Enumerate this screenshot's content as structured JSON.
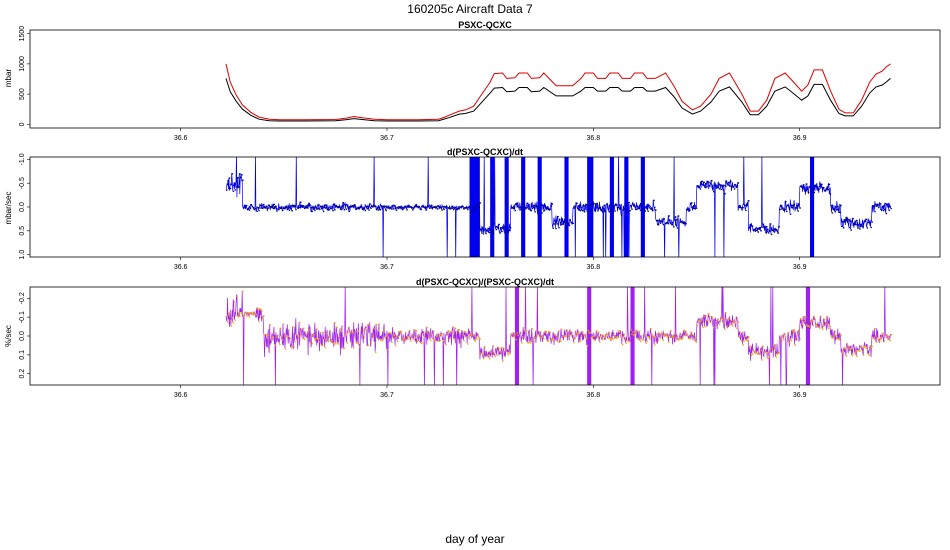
{
  "figure": {
    "title": "160205c   Aircraft Data 7",
    "xlabel": "day of year",
    "colors": {
      "panel1_upper": "#dd0000",
      "panel1_lower": "#000000",
      "panel2_line": "#0000ee",
      "panel2_points": "#00008b",
      "panel3_line": "#a020f0",
      "panel3_points": "#ffa500"
    }
  },
  "chart_data": [
    {
      "type": "line",
      "title": "PSXC-QCXC",
      "ylabel": "mbar",
      "xlim": [
        36.527,
        36.968
      ],
      "ylim": [
        -60,
        1560
      ],
      "x_ticks": [
        36.6,
        36.7,
        36.8,
        36.9
      ],
      "x_tick_labels": [
        "36.6",
        "36.7",
        "36.8",
        "36.9"
      ],
      "y_ticks": [
        0,
        500,
        1000,
        1500
      ],
      "y_tick_labels": [
        "0",
        "500",
        "1000",
        "1500"
      ],
      "series": [
        {
          "name": "upper (red)",
          "color": "#dd0000",
          "x": [
            36.622,
            36.624,
            36.627,
            36.63,
            36.634,
            36.638,
            36.643,
            36.648,
            36.66,
            36.675,
            36.68,
            36.684,
            36.688,
            36.694,
            36.7,
            36.715,
            36.725,
            36.728,
            36.73,
            36.735,
            36.738,
            36.742,
            36.745,
            36.75,
            36.752,
            36.756,
            36.758,
            36.762,
            36.764,
            36.768,
            36.77,
            36.774,
            36.776,
            36.782,
            36.79,
            36.794,
            36.796,
            36.8,
            36.802,
            36.806,
            36.808,
            36.812,
            36.814,
            36.818,
            36.82,
            36.824,
            36.826,
            36.83,
            36.835,
            36.839,
            36.843,
            36.848,
            36.852,
            36.857,
            36.861,
            36.866,
            36.872,
            36.876,
            36.88,
            36.884,
            36.888,
            36.893,
            36.897,
            36.901,
            36.904,
            36.907,
            36.911,
            36.915,
            36.919,
            36.922,
            36.926,
            36.93,
            36.934,
            36.937,
            36.94,
            36.942,
            36.944
          ],
          "y": [
            1000,
            700,
            480,
            320,
            200,
            120,
            85,
            75,
            75,
            80,
            100,
            130,
            110,
            85,
            75,
            75,
            85,
            120,
            150,
            220,
            240,
            300,
            450,
            700,
            840,
            850,
            760,
            770,
            850,
            850,
            760,
            770,
            850,
            640,
            640,
            760,
            850,
            850,
            760,
            760,
            850,
            850,
            760,
            760,
            850,
            850,
            760,
            760,
            850,
            640,
            380,
            240,
            300,
            500,
            760,
            850,
            500,
            220,
            220,
            400,
            760,
            850,
            700,
            550,
            650,
            900,
            900,
            550,
            250,
            190,
            190,
            400,
            700,
            830,
            880,
            950,
            1000
          ]
        },
        {
          "name": "lower (black)",
          "color": "#000000",
          "x": [
            36.622,
            36.624,
            36.627,
            36.63,
            36.634,
            36.638,
            36.643,
            36.648,
            36.66,
            36.675,
            36.68,
            36.684,
            36.688,
            36.694,
            36.7,
            36.715,
            36.725,
            36.728,
            36.73,
            36.735,
            36.738,
            36.742,
            36.745,
            36.75,
            36.752,
            36.756,
            36.758,
            36.762,
            36.764,
            36.768,
            36.77,
            36.774,
            36.776,
            36.782,
            36.79,
            36.794,
            36.796,
            36.8,
            36.802,
            36.806,
            36.808,
            36.812,
            36.814,
            36.818,
            36.82,
            36.824,
            36.826,
            36.83,
            36.835,
            36.839,
            36.843,
            36.848,
            36.852,
            36.857,
            36.861,
            36.866,
            36.872,
            36.876,
            36.88,
            36.884,
            36.888,
            36.893,
            36.897,
            36.901,
            36.904,
            36.907,
            36.911,
            36.915,
            36.919,
            36.922,
            36.926,
            36.93,
            36.934,
            36.937,
            36.94,
            36.942,
            36.944
          ],
          "y": [
            760,
            540,
            380,
            250,
            150,
            85,
            60,
            55,
            55,
            60,
            75,
            95,
            80,
            60,
            55,
            55,
            60,
            90,
            110,
            170,
            180,
            220,
            330,
            520,
            600,
            610,
            540,
            550,
            610,
            610,
            540,
            550,
            610,
            470,
            470,
            550,
            610,
            610,
            550,
            550,
            610,
            610,
            550,
            550,
            610,
            610,
            550,
            550,
            610,
            460,
            270,
            170,
            220,
            370,
            550,
            620,
            370,
            160,
            160,
            300,
            550,
            620,
            510,
            400,
            470,
            660,
            660,
            400,
            180,
            140,
            140,
            300,
            520,
            620,
            650,
            700,
            760
          ]
        }
      ]
    },
    {
      "type": "line",
      "title": "d(PSXC-QCXC)/dt",
      "ylabel": "mbar/sec",
      "xlim": [
        36.527,
        36.968
      ],
      "ylim": [
        1.05,
        -1.05
      ],
      "y_inverted": true,
      "x_ticks": [
        36.6,
        36.7,
        36.8,
        36.9
      ],
      "x_tick_labels": [
        "36.6",
        "36.7",
        "36.8",
        "36.9"
      ],
      "y_ticks": [
        -1.0,
        -0.5,
        0.0,
        0.5,
        1.0
      ],
      "y_tick_labels": [
        "-1.0",
        "-0.5",
        "0.0",
        "0.5",
        "1.0"
      ],
      "x_start": 36.622,
      "x_end": 36.944,
      "series": [
        {
          "name": "derivative (line)",
          "color": "#0000ee"
        },
        {
          "name": "derivative (points)",
          "color": "#00008b"
        }
      ]
    },
    {
      "type": "line",
      "title": "d(PSXC-QCXC)/(PSXC-QCXC)/dt",
      "ylabel": "%/sec",
      "xlim": [
        36.527,
        36.968
      ],
      "ylim": [
        0.26,
        -0.26
      ],
      "y_inverted": true,
      "x_ticks": [
        36.6,
        36.7,
        36.8,
        36.9
      ],
      "x_tick_labels": [
        "36.6",
        "36.7",
        "36.8",
        "36.9"
      ],
      "y_ticks": [
        -0.2,
        -0.1,
        0.0,
        0.1,
        0.2
      ],
      "y_tick_labels": [
        "-0.2",
        "-0.1",
        "0.0",
        "0.1",
        "0.2"
      ],
      "x_start": 36.622,
      "x_end": 36.944,
      "series": [
        {
          "name": "relative derivative (line)",
          "color": "#a020f0"
        },
        {
          "name": "relative derivative (points)",
          "color": "#ffa500"
        }
      ]
    }
  ]
}
